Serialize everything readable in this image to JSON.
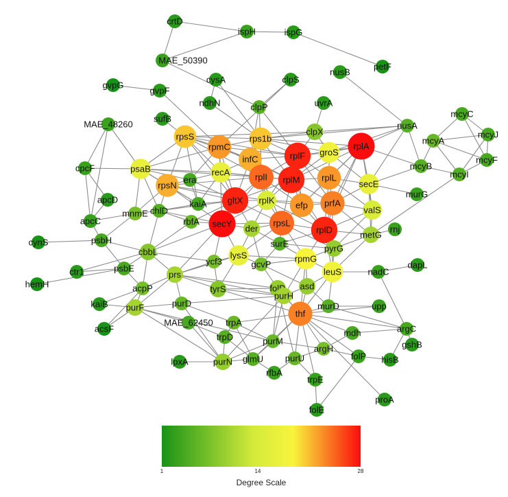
{
  "nodes": [
    {
      "id": "crtD",
      "degree": 2
    },
    {
      "id": "ispH",
      "degree": 3
    },
    {
      "id": "ispG",
      "degree": 2
    },
    {
      "id": "MAE_50390",
      "degree": 3
    },
    {
      "id": "petF",
      "degree": 1
    },
    {
      "id": "nusB",
      "degree": 2
    },
    {
      "id": "gvpG",
      "degree": 1
    },
    {
      "id": "gvpF",
      "degree": 2
    },
    {
      "id": "cysA",
      "degree": 2
    },
    {
      "id": "clpS",
      "degree": 2
    },
    {
      "id": "ndhN",
      "degree": 2
    },
    {
      "id": "uvrA",
      "degree": 2
    },
    {
      "id": "clpP",
      "degree": 5
    },
    {
      "id": "MAE_48260",
      "degree": 3
    },
    {
      "id": "sufB",
      "degree": 2
    },
    {
      "id": "nusA",
      "degree": 5
    },
    {
      "id": "mcyC",
      "degree": 4
    },
    {
      "id": "mcyJ",
      "degree": 4
    },
    {
      "id": "mcyA",
      "degree": 6
    },
    {
      "id": "mcyF",
      "degree": 4
    },
    {
      "id": "mcyB",
      "degree": 5
    },
    {
      "id": "mcyI",
      "degree": 5
    },
    {
      "id": "rpsS",
      "degree": 20
    },
    {
      "id": "rpmC",
      "degree": 22
    },
    {
      "id": "rps1b",
      "degree": 20
    },
    {
      "id": "clpX",
      "degree": 8
    },
    {
      "id": "rplF",
      "degree": 27
    },
    {
      "id": "groS",
      "degree": 17
    },
    {
      "id": "rplA",
      "degree": 28
    },
    {
      "id": "infC",
      "degree": 21
    },
    {
      "id": "cpcF",
      "degree": 3
    },
    {
      "id": "psaB",
      "degree": 16
    },
    {
      "id": "recA",
      "degree": 16
    },
    {
      "id": "rplI",
      "degree": 24
    },
    {
      "id": "rplM",
      "degree": 27
    },
    {
      "id": "rplL",
      "degree": 22
    },
    {
      "id": "secE",
      "degree": 16
    },
    {
      "id": "rpsN",
      "degree": 21
    },
    {
      "id": "era",
      "degree": 4
    },
    {
      "id": "apcD",
      "degree": 2
    },
    {
      "id": "murG",
      "degree": 3
    },
    {
      "id": "mnmE",
      "degree": 7
    },
    {
      "id": "kaiA",
      "degree": 4
    },
    {
      "id": "gltX",
      "degree": 27
    },
    {
      "id": "rplK",
      "degree": 14
    },
    {
      "id": "efp",
      "degree": 22
    },
    {
      "id": "prfA",
      "degree": 23
    },
    {
      "id": "valS",
      "degree": 14
    },
    {
      "id": "apcC",
      "degree": 3
    },
    {
      "id": "chlD",
      "degree": 5
    },
    {
      "id": "rpsL",
      "degree": 24
    },
    {
      "id": "rplD",
      "degree": 27
    },
    {
      "id": "metG",
      "degree": 10
    },
    {
      "id": "rnj",
      "degree": 3
    },
    {
      "id": "secY",
      "degree": 28
    },
    {
      "id": "rbfA",
      "degree": 6
    },
    {
      "id": "der",
      "degree": 10
    },
    {
      "id": "cynS",
      "degree": 1
    },
    {
      "id": "psbH",
      "degree": 4
    },
    {
      "id": "cbbL",
      "degree": 8
    },
    {
      "id": "surE",
      "degree": 5
    },
    {
      "id": "pyrG",
      "degree": 9
    },
    {
      "id": "lysS",
      "degree": 16
    },
    {
      "id": "ycf3",
      "degree": 7
    },
    {
      "id": "gcvP",
      "degree": 7
    },
    {
      "id": "rpmG",
      "degree": 18
    },
    {
      "id": "leuS",
      "degree": 17
    },
    {
      "id": "psbE",
      "degree": 4
    },
    {
      "id": "nadC",
      "degree": 3
    },
    {
      "id": "dapL",
      "degree": 2
    },
    {
      "id": "hemH",
      "degree": 1
    },
    {
      "id": "ctr1",
      "degree": 2
    },
    {
      "id": "prs",
      "degree": 10
    },
    {
      "id": "acpP",
      "degree": 7
    },
    {
      "id": "tyrS",
      "degree": 8
    },
    {
      "id": "folD",
      "degree": 9
    },
    {
      "id": "asd",
      "degree": 9
    },
    {
      "id": "purH",
      "degree": 10
    },
    {
      "id": "murD",
      "degree": 5
    },
    {
      "id": "upp",
      "degree": 3
    },
    {
      "id": "kaiB",
      "degree": 2
    },
    {
      "id": "purF",
      "degree": 10
    },
    {
      "id": "purD",
      "degree": 6
    },
    {
      "id": "thf",
      "degree": 23
    },
    {
      "id": "MAE_62450",
      "degree": 4
    },
    {
      "id": "argC",
      "degree": 4
    },
    {
      "id": "acsF",
      "degree": 1
    },
    {
      "id": "trpA",
      "degree": 6
    },
    {
      "id": "mdh",
      "degree": 4
    },
    {
      "id": "gshB",
      "degree": 2
    },
    {
      "id": "trpD",
      "degree": 5
    },
    {
      "id": "purM",
      "degree": 6
    },
    {
      "id": "argH",
      "degree": 7
    },
    {
      "id": "folP",
      "degree": 3
    },
    {
      "id": "hisB",
      "degree": 2
    },
    {
      "id": "lpxA",
      "degree": 2
    },
    {
      "id": "purN",
      "degree": 9
    },
    {
      "id": "glmU",
      "degree": 5
    },
    {
      "id": "rfbA",
      "degree": 3
    },
    {
      "id": "purU",
      "degree": 6
    },
    {
      "id": "trpE",
      "degree": 3
    },
    {
      "id": "proA",
      "degree": 2
    },
    {
      "id": "folE",
      "degree": 2
    }
  ],
  "edges": [
    [
      "crtD",
      "ispH"
    ],
    [
      "ispH",
      "ispG"
    ],
    [
      "ispG",
      "petF"
    ],
    [
      "crtD",
      "MAE_50390"
    ],
    [
      "MAE_50390",
      "ispH"
    ],
    [
      "MAE_50390",
      "clpP"
    ],
    [
      "gvpG",
      "gvpF"
    ],
    [
      "gvpF",
      "rpmC"
    ],
    [
      "cysA",
      "ndhN"
    ],
    [
      "cysA",
      "rps1b"
    ],
    [
      "clpS",
      "clpP"
    ],
    [
      "clpS",
      "rpmC"
    ],
    [
      "ndhN",
      "rps1b"
    ],
    [
      "uvrA",
      "clpX"
    ],
    [
      "clpP",
      "rps1b"
    ],
    [
      "clpP",
      "rplF"
    ],
    [
      "clpP",
      "infC"
    ],
    [
      "MAE_48260",
      "cpcF"
    ],
    [
      "MAE_48260",
      "psaB"
    ],
    [
      "MAE_48260",
      "apcC"
    ],
    [
      "sufB",
      "rpsS"
    ],
    [
      "nusB",
      "nusA"
    ],
    [
      "nusA",
      "rplA"
    ],
    [
      "nusA",
      "secE"
    ],
    [
      "nusA",
      "groS"
    ],
    [
      "nusA",
      "rps1b"
    ],
    [
      "nusA",
      "mcyB"
    ],
    [
      "mcyC",
      "mcyA"
    ],
    [
      "mcyC",
      "mcyJ"
    ],
    [
      "mcyC",
      "mcyF"
    ],
    [
      "mcyA",
      "mcyJ"
    ],
    [
      "mcyA",
      "mcyB"
    ],
    [
      "mcyA",
      "mcyI"
    ],
    [
      "mcyA",
      "mcyF"
    ],
    [
      "mcyB",
      "mcyI"
    ],
    [
      "mcyJ",
      "mcyF"
    ],
    [
      "mcyJ",
      "mcyI"
    ],
    [
      "mcyF",
      "mcyI"
    ],
    [
      "mcyB",
      "secE"
    ],
    [
      "mcyB",
      "rplA"
    ],
    [
      "mcyI",
      "metG"
    ],
    [
      "rpsS",
      "rpmC"
    ],
    [
      "rpsS",
      "rps1b"
    ],
    [
      "rpsS",
      "rplF"
    ],
    [
      "rpsS",
      "infC"
    ],
    [
      "rpsS",
      "rplI"
    ],
    [
      "rpsS",
      "psaB"
    ],
    [
      "rpsS",
      "gltX"
    ],
    [
      "rpsS",
      "rpsN"
    ],
    [
      "rpsS",
      "recA"
    ],
    [
      "rpsS",
      "kaiA"
    ],
    [
      "rpsS",
      "clpX"
    ],
    [
      "rpmC",
      "rps1b"
    ],
    [
      "rpmC",
      "infC"
    ],
    [
      "rpmC",
      "rplF"
    ],
    [
      "rpmC",
      "rplM"
    ],
    [
      "rpmC",
      "gltX"
    ],
    [
      "rpmC",
      "psaB"
    ],
    [
      "rpmC",
      "recA"
    ],
    [
      "rpmC",
      "secY"
    ],
    [
      "rpmC",
      "era"
    ],
    [
      "rps1b",
      "clpX"
    ],
    [
      "rps1b",
      "rplF"
    ],
    [
      "rps1b",
      "groS"
    ],
    [
      "rps1b",
      "infC"
    ],
    [
      "rps1b",
      "rplI"
    ],
    [
      "rps1b",
      "rplA"
    ],
    [
      "rps1b",
      "rplM"
    ],
    [
      "clpX",
      "rplF"
    ],
    [
      "clpX",
      "groS"
    ],
    [
      "clpX",
      "nusA"
    ],
    [
      "rplF",
      "groS"
    ],
    [
      "rplF",
      "rplA"
    ],
    [
      "rplF",
      "infC"
    ],
    [
      "rplF",
      "rplM"
    ],
    [
      "rplF",
      "rplL"
    ],
    [
      "rplF",
      "rplI"
    ],
    [
      "rplF",
      "prfA"
    ],
    [
      "rplF",
      "efp"
    ],
    [
      "rplF",
      "rplK"
    ],
    [
      "groS",
      "rplA"
    ],
    [
      "groS",
      "rplL"
    ],
    [
      "groS",
      "secE"
    ],
    [
      "groS",
      "rplM"
    ],
    [
      "rplA",
      "rplL"
    ],
    [
      "rplA",
      "secE"
    ],
    [
      "rplA",
      "rplM"
    ],
    [
      "rplA",
      "prfA"
    ],
    [
      "rplA",
      "valS"
    ],
    [
      "rplA",
      "rplD"
    ],
    [
      "rplA",
      "efp"
    ],
    [
      "infC",
      "recA"
    ],
    [
      "infC",
      "rplI"
    ],
    [
      "infC",
      "rplM"
    ],
    [
      "infC",
      "gltX"
    ],
    [
      "infC",
      "rplK"
    ],
    [
      "psaB",
      "recA"
    ],
    [
      "psaB",
      "rpsN"
    ],
    [
      "psaB",
      "era"
    ],
    [
      "psaB",
      "cpcF"
    ],
    [
      "psaB",
      "kaiA"
    ],
    [
      "psaB",
      "chlD"
    ],
    [
      "psaB",
      "mnmE"
    ],
    [
      "psaB",
      "rplI"
    ],
    [
      "recA",
      "rplI"
    ],
    [
      "recA",
      "era"
    ],
    [
      "recA",
      "gltX"
    ],
    [
      "recA",
      "kaiA"
    ],
    [
      "recA",
      "rplM"
    ],
    [
      "rplI",
      "rplM"
    ],
    [
      "rplI",
      "gltX"
    ],
    [
      "rplI",
      "rplK"
    ],
    [
      "rplI",
      "efp"
    ],
    [
      "rplI",
      "secY"
    ],
    [
      "rplI",
      "rpsL"
    ],
    [
      "rplM",
      "rplL"
    ],
    [
      "rplM",
      "rplK"
    ],
    [
      "rplM",
      "efp"
    ],
    [
      "rplM",
      "prfA"
    ],
    [
      "rplM",
      "gltX"
    ],
    [
      "rplM",
      "rpsL"
    ],
    [
      "rplM",
      "rplD"
    ],
    [
      "rplL",
      "secE"
    ],
    [
      "rplL",
      "prfA"
    ],
    [
      "rplL",
      "efp"
    ],
    [
      "rplL",
      "valS"
    ],
    [
      "rplL",
      "rplD"
    ],
    [
      "secE",
      "valS"
    ],
    [
      "secE",
      "prfA"
    ],
    [
      "secE",
      "murG"
    ],
    [
      "secE",
      "metG"
    ],
    [
      "rpsN",
      "era"
    ],
    [
      "rpsN",
      "gltX"
    ],
    [
      "rpsN",
      "secY"
    ],
    [
      "rpsN",
      "kaiA"
    ],
    [
      "rpsN",
      "mnmE"
    ],
    [
      "rpsN",
      "chlD"
    ],
    [
      "rpsN",
      "rplK"
    ],
    [
      "rpsN",
      "rplI"
    ],
    [
      "era",
      "kaiA"
    ],
    [
      "era",
      "gltX"
    ],
    [
      "mnmE",
      "psbH"
    ],
    [
      "mnmE",
      "chlD"
    ],
    [
      "mnmE",
      "apcC"
    ],
    [
      "kaiA",
      "gltX"
    ],
    [
      "kaiA",
      "chlD"
    ],
    [
      "gltX",
      "rplK"
    ],
    [
      "gltX",
      "secY"
    ],
    [
      "gltX",
      "der"
    ],
    [
      "gltX",
      "rpsL"
    ],
    [
      "gltX",
      "rbfA"
    ],
    [
      "gltX",
      "chlD"
    ],
    [
      "rplK",
      "efp"
    ],
    [
      "rplK",
      "rpsL"
    ],
    [
      "rplK",
      "der"
    ],
    [
      "rplK",
      "secY"
    ],
    [
      "rplK",
      "rplD"
    ],
    [
      "rplK",
      "prfA"
    ],
    [
      "efp",
      "prfA"
    ],
    [
      "efp",
      "rpsL"
    ],
    [
      "efp",
      "rplD"
    ],
    [
      "prfA",
      "valS"
    ],
    [
      "prfA",
      "rplD"
    ],
    [
      "prfA",
      "metG"
    ],
    [
      "prfA",
      "leuS"
    ],
    [
      "valS",
      "metG"
    ],
    [
      "valS",
      "rplD"
    ],
    [
      "valS",
      "pyrG"
    ],
    [
      "cpcF",
      "apcD"
    ],
    [
      "cpcF",
      "apcC"
    ],
    [
      "apcD",
      "apcC"
    ],
    [
      "apcC",
      "psbH"
    ],
    [
      "chlD",
      "rbfA"
    ],
    [
      "chlD",
      "cbbL"
    ],
    [
      "chlD",
      "secY"
    ],
    [
      "rpsL",
      "rplD"
    ],
    [
      "rpsL",
      "secY"
    ],
    [
      "rpsL",
      "der"
    ],
    [
      "rpsL",
      "surE"
    ],
    [
      "rpsL",
      "lysS"
    ],
    [
      "rpsL",
      "rpmG"
    ],
    [
      "rpsL",
      "pyrG"
    ],
    [
      "rplD",
      "metG"
    ],
    [
      "rplD",
      "pyrG"
    ],
    [
      "rplD",
      "leuS"
    ],
    [
      "rplD",
      "rpmG"
    ],
    [
      "rplD",
      "surE"
    ],
    [
      "metG",
      "rnj"
    ],
    [
      "metG",
      "pyrG"
    ],
    [
      "metG",
      "leuS"
    ],
    [
      "secY",
      "der"
    ],
    [
      "secY",
      "rbfA"
    ],
    [
      "secY",
      "lysS"
    ],
    [
      "secY",
      "cbbL"
    ],
    [
      "secY",
      "ycf3"
    ],
    [
      "secY",
      "prs"
    ],
    [
      "rbfA",
      "cbbL"
    ],
    [
      "der",
      "surE"
    ],
    [
      "der",
      "lysS"
    ],
    [
      "der",
      "gcvP"
    ],
    [
      "cynS",
      "psbH"
    ],
    [
      "psbH",
      "cbbL"
    ],
    [
      "psbH",
      "psbE"
    ],
    [
      "cbbL",
      "psbE"
    ],
    [
      "cbbL",
      "prs"
    ],
    [
      "cbbL",
      "acpP"
    ],
    [
      "cbbL",
      "ycf3"
    ],
    [
      "cbbL",
      "ctr1"
    ],
    [
      "surE",
      "pyrG"
    ],
    [
      "surE",
      "rpmG"
    ],
    [
      "surE",
      "gcvP"
    ],
    [
      "pyrG",
      "leuS"
    ],
    [
      "pyrG",
      "rpmG"
    ],
    [
      "lysS",
      "gcvP"
    ],
    [
      "lysS",
      "ycf3"
    ],
    [
      "lysS",
      "tyrS"
    ],
    [
      "lysS",
      "prs"
    ],
    [
      "lysS",
      "rpmG"
    ],
    [
      "ycf3",
      "prs"
    ],
    [
      "ycf3",
      "tyrS"
    ],
    [
      "gcvP",
      "rpmG"
    ],
    [
      "gcvP",
      "folD"
    ],
    [
      "gcvP",
      "asd"
    ],
    [
      "rpmG",
      "leuS"
    ],
    [
      "rpmG",
      "thf"
    ],
    [
      "rpmG",
      "asd"
    ],
    [
      "rpmG",
      "purH"
    ],
    [
      "leuS",
      "nadC"
    ],
    [
      "leuS",
      "thf"
    ],
    [
      "leuS",
      "murD"
    ],
    [
      "leuS",
      "asd"
    ],
    [
      "nadC",
      "dapL"
    ],
    [
      "nadC",
      "argC"
    ],
    [
      "psbE",
      "hemH"
    ],
    [
      "psbE",
      "ctr1"
    ],
    [
      "psbE",
      "acpP"
    ],
    [
      "prs",
      "acpP"
    ],
    [
      "prs",
      "tyrS"
    ],
    [
      "prs",
      "purF"
    ],
    [
      "prs",
      "purD"
    ],
    [
      "prs",
      "folD"
    ],
    [
      "prs",
      "purH"
    ],
    [
      "acpP",
      "purF"
    ],
    [
      "acpP",
      "kaiB"
    ],
    [
      "acpP",
      "acsF"
    ],
    [
      "tyrS",
      "folD"
    ],
    [
      "tyrS",
      "purH"
    ],
    [
      "tyrS",
      "thf"
    ],
    [
      "folD",
      "purH"
    ],
    [
      "folD",
      "thf"
    ],
    [
      "folD",
      "purM"
    ],
    [
      "folD",
      "purU"
    ],
    [
      "asd",
      "thf"
    ],
    [
      "asd",
      "murD"
    ],
    [
      "asd",
      "purH"
    ],
    [
      "purH",
      "thf"
    ],
    [
      "purH",
      "purM"
    ],
    [
      "purH",
      "purN"
    ],
    [
      "purH",
      "purD"
    ],
    [
      "murD",
      "thf"
    ],
    [
      "murD",
      "upp"
    ],
    [
      "murD",
      "argC"
    ],
    [
      "upp",
      "thf"
    ],
    [
      "kaiB",
      "purF"
    ],
    [
      "purF",
      "purD"
    ],
    [
      "purF",
      "purN"
    ],
    [
      "purF",
      "purM"
    ],
    [
      "purF",
      "MAE_62450"
    ],
    [
      "purD",
      "purN"
    ],
    [
      "purD",
      "trpA"
    ],
    [
      "thf",
      "argH"
    ],
    [
      "thf",
      "mdh"
    ],
    [
      "thf",
      "argC"
    ],
    [
      "thf",
      "folP"
    ],
    [
      "thf",
      "purU"
    ],
    [
      "thf",
      "purM"
    ],
    [
      "thf",
      "trpE"
    ],
    [
      "thf",
      "glmU"
    ],
    [
      "thf",
      "trpA"
    ],
    [
      "MAE_62450",
      "trpD"
    ],
    [
      "MAE_62450",
      "purN"
    ],
    [
      "argC",
      "mdh"
    ],
    [
      "argC",
      "gshB"
    ],
    [
      "argC",
      "hisB"
    ],
    [
      "acsF",
      "purF"
    ],
    [
      "trpA",
      "trpD"
    ],
    [
      "trpA",
      "purM"
    ],
    [
      "trpA",
      "glmU"
    ],
    [
      "mdh",
      "argH"
    ],
    [
      "trpD",
      "purN"
    ],
    [
      "trpD",
      "glmU"
    ],
    [
      "purM",
      "purN"
    ],
    [
      "purM",
      "glmU"
    ],
    [
      "purM",
      "argH"
    ],
    [
      "argH",
      "purU"
    ],
    [
      "argH",
      "folP"
    ],
    [
      "folP",
      "folE"
    ],
    [
      "folP",
      "hisB"
    ],
    [
      "lpxA",
      "purN"
    ],
    [
      "purN",
      "glmU"
    ],
    [
      "glmU",
      "rfbA"
    ],
    [
      "rfbA",
      "purU"
    ],
    [
      "purU",
      "trpE"
    ],
    [
      "trpE",
      "folE"
    ],
    [
      "proA",
      "thf"
    ]
  ],
  "scale": {
    "min_label": "1",
    "mid_label": "14",
    "max_label": "28",
    "min": 1,
    "mid": 14,
    "max": 28,
    "title": "Degree Scale",
    "colors": [
      "#199317",
      "#d3ea3a",
      "#f8f43c",
      "#fc0c0c"
    ]
  }
}
